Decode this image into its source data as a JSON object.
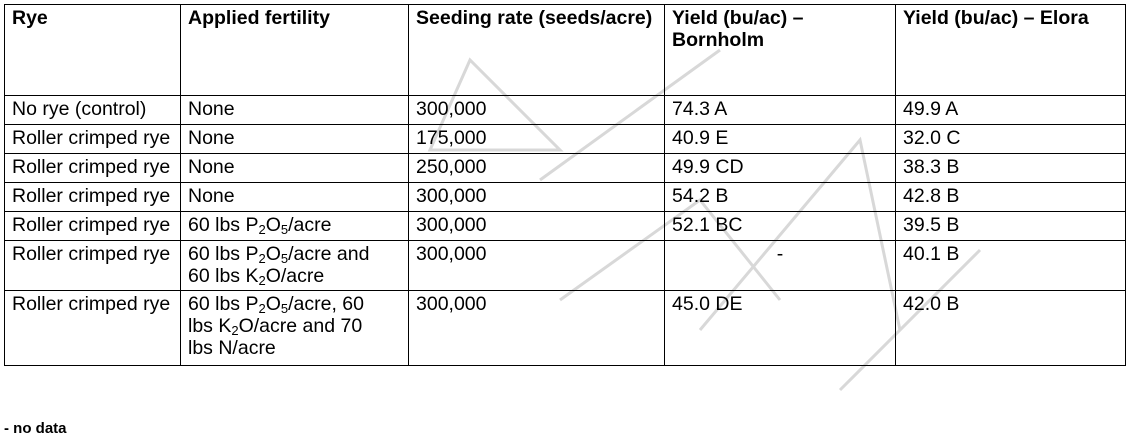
{
  "headers": [
    "Rye",
    "Applied fertility",
    "Seeding rate (seeds/acre)",
    "Yield (bu/ac) – Bornholm",
    "Yield (bu/ac) – Elora"
  ],
  "rows": [
    {
      "rye": "No rye (control)",
      "fertility": "None",
      "seeding": "300,000",
      "bornholm": "74.3 A",
      "elora": "49.9 A"
    },
    {
      "rye": "Roller crimped rye",
      "fertility": "None",
      "seeding": "175,000",
      "bornholm": "40.9 E",
      "elora": "32.0 C"
    },
    {
      "rye": "Roller crimped rye",
      "fertility": "None",
      "seeding": "250,000",
      "bornholm": "49.9 CD",
      "elora": "38.3 B"
    },
    {
      "rye": "Roller crimped rye",
      "fertility": "None",
      "seeding": "300,000",
      "bornholm": "54.2 B",
      "elora": "42.8 B"
    },
    {
      "rye": "Roller crimped rye",
      "fertility": {
        "a": "60 lbs P",
        "b": "2",
        "c": "O",
        "d": "5",
        "e": "/acre"
      },
      "seeding": "300,000",
      "bornholm": "52.1 BC",
      "elora": "39.5 B"
    },
    {
      "rye": "Roller crimped rye",
      "fertility": {
        "a": "60 lbs P",
        "b": "2",
        "c": "O",
        "d": "5",
        "e": "/acre and",
        "f": "60 lbs K",
        "g": "2",
        "h": "O/acre"
      },
      "seeding": "300,000",
      "bornholm": "-",
      "elora": "40.1 B"
    },
    {
      "rye": "Roller crimped rye",
      "fertility": {
        "a": "60 lbs P",
        "b": "2",
        "c": "O",
        "d": "5",
        "e": "/acre, 60",
        "f": "lbs K",
        "g": "2",
        "h": "O/acre and 70",
        "i": "lbs N/acre"
      },
      "seeding": "300,000",
      "bornholm": "45.0 DE",
      "elora": "42.0 B"
    }
  ],
  "footnote": "- no data",
  "watermark": "DRAFT"
}
